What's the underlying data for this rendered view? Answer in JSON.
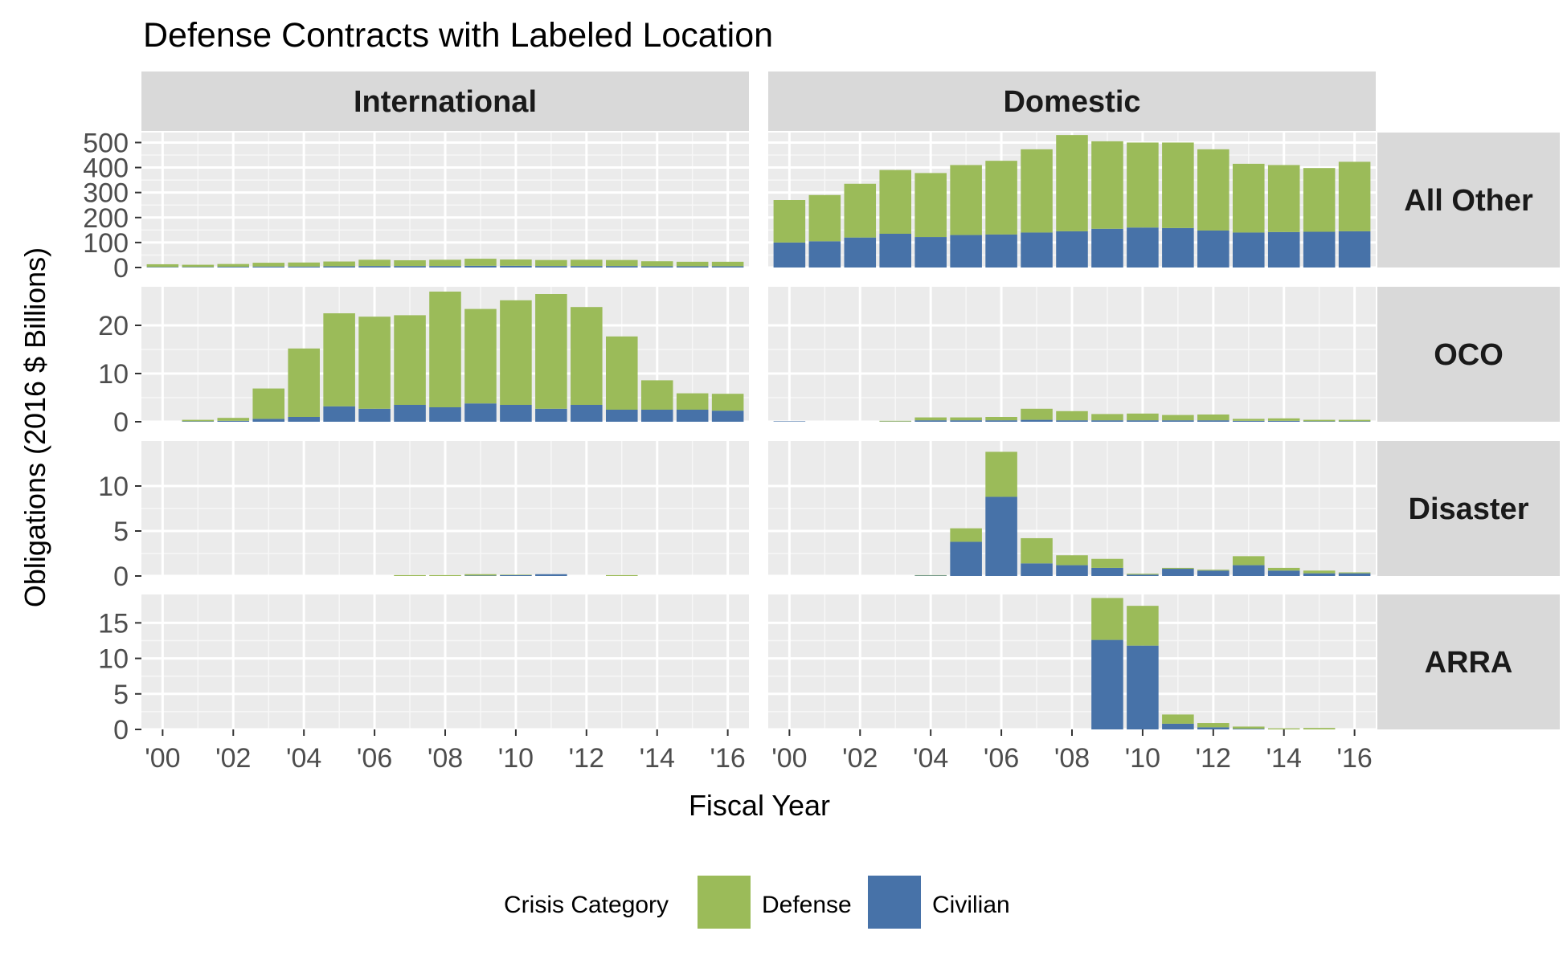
{
  "chart_data": {
    "type": "bar",
    "stacked": true,
    "facets": true,
    "title": "Defense Contracts with Labeled Location",
    "xlabel": "Fiscal Year",
    "ylabel": "Obligations (2016 $ Billions)",
    "x": [
      2000,
      2001,
      2002,
      2003,
      2004,
      2005,
      2006,
      2007,
      2008,
      2009,
      2010,
      2011,
      2012,
      2013,
      2014,
      2015,
      2016
    ],
    "x_tick_values": [
      2000,
      2002,
      2004,
      2006,
      2008,
      2010,
      2012,
      2014,
      2016
    ],
    "x_tick_labels": [
      "'00",
      "'02",
      "'04",
      "'06",
      "'08",
      "'10",
      "'12",
      "'14",
      "'16"
    ],
    "columns": [
      "International",
      "Domestic"
    ],
    "rows": [
      "All Other",
      "OCO",
      "Disaster",
      "ARRA"
    ],
    "row_scales": [
      {
        "ylim": [
          0,
          540
        ],
        "ticks": [
          0,
          100,
          200,
          300,
          400,
          500
        ]
      },
      {
        "ylim": [
          0,
          28
        ],
        "ticks": [
          0,
          10,
          20
        ]
      },
      {
        "ylim": [
          0,
          15
        ],
        "ticks": [
          0,
          5,
          10
        ]
      },
      {
        "ylim": [
          0,
          19
        ],
        "ticks": [
          0,
          5,
          10,
          15
        ]
      }
    ],
    "legend": {
      "title": "Crisis Category",
      "position": "bottom",
      "entries": [
        "Defense",
        "Civilian"
      ]
    },
    "colors": {
      "Defense": "#9bbb59",
      "Civilian": "#4772a8"
    },
    "panels": [
      {
        "column": "International",
        "row": "All Other",
        "series": [
          {
            "name": "Civilian",
            "values": [
              2,
              2,
              3,
              4,
              4,
              5,
              6,
              6,
              6,
              7,
              7,
              6,
              6,
              6,
              5,
              5,
              5
            ]
          },
          {
            "name": "Defense",
            "values": [
              11,
              9,
              11,
              15,
              16,
              19,
              25,
              23,
              25,
              28,
              25,
              24,
              25,
              24,
              20,
              18,
              18
            ]
          }
        ]
      },
      {
        "column": "Domestic",
        "row": "All Other",
        "series": [
          {
            "name": "Civilian",
            "values": [
              100,
              105,
              120,
              135,
              122,
              130,
              132,
              140,
              145,
              155,
              160,
              158,
              148,
              140,
              142,
              143,
              145
            ]
          },
          {
            "name": "Defense",
            "values": [
              170,
              185,
              215,
              255,
              256,
              280,
              295,
              333,
              385,
              350,
              340,
              342,
              325,
              275,
              268,
              255,
              278
            ]
          }
        ]
      },
      {
        "column": "International",
        "row": "OCO",
        "series": [
          {
            "name": "Civilian",
            "values": [
              0,
              0.1,
              0.2,
              0.6,
              1.0,
              3.2,
              2.7,
              3.5,
              3.0,
              3.8,
              3.5,
              2.7,
              3.5,
              2.5,
              2.5,
              2.5,
              2.3
            ]
          },
          {
            "name": "Defense",
            "values": [
              0,
              0.3,
              0.6,
              6.3,
              14.2,
              19.3,
              19.1,
              18.6,
              24.0,
              19.6,
              21.7,
              23.8,
              20.3,
              15.2,
              6.1,
              3.4,
              3.5
            ]
          }
        ]
      },
      {
        "column": "Domestic",
        "row": "OCO",
        "series": [
          {
            "name": "Civilian",
            "values": [
              0.1,
              0,
              0,
              0.05,
              0.3,
              0.3,
              0.3,
              0.4,
              0.3,
              0.3,
              0.3,
              0.3,
              0.3,
              0.2,
              0.2,
              0.1,
              0.1
            ]
          },
          {
            "name": "Defense",
            "values": [
              0,
              0,
              0,
              0.15,
              0.6,
              0.6,
              0.7,
              2.3,
              1.9,
              1.3,
              1.4,
              1.1,
              1.2,
              0.4,
              0.5,
              0.3,
              0.3
            ]
          }
        ]
      },
      {
        "column": "International",
        "row": "Disaster",
        "series": [
          {
            "name": "Civilian",
            "values": [
              0,
              0,
              0,
              0,
              0,
              0,
              0,
              0,
              0,
              0.05,
              0.1,
              0.2,
              0,
              0,
              0,
              0,
              0
            ]
          },
          {
            "name": "Defense",
            "values": [
              0,
              0,
              0,
              0,
              0,
              0,
              0,
              0.1,
              0.1,
              0.15,
              0.05,
              0,
              0,
              0.1,
              0,
              0,
              0
            ]
          }
        ]
      },
      {
        "column": "Domestic",
        "row": "Disaster",
        "series": [
          {
            "name": "Civilian",
            "values": [
              0,
              0,
              0,
              0,
              0.05,
              3.8,
              8.8,
              1.4,
              1.2,
              0.9,
              0.15,
              0.8,
              0.6,
              1.2,
              0.6,
              0.3,
              0.3
            ]
          },
          {
            "name": "Defense",
            "values": [
              0,
              0,
              0,
              0,
              0.05,
              1.5,
              5.0,
              2.8,
              1.1,
              1.0,
              0.1,
              0.1,
              0.1,
              1.0,
              0.3,
              0.3,
              0.1
            ]
          }
        ]
      },
      {
        "column": "International",
        "row": "ARRA",
        "series": [
          {
            "name": "Civilian",
            "values": [
              0,
              0,
              0,
              0,
              0,
              0,
              0,
              0,
              0,
              0,
              0,
              0,
              0,
              0,
              0,
              0,
              0
            ]
          },
          {
            "name": "Defense",
            "values": [
              0,
              0,
              0,
              0,
              0,
              0,
              0,
              0,
              0,
              0,
              0,
              0,
              0,
              0,
              0,
              0,
              0
            ]
          }
        ]
      },
      {
        "column": "Domestic",
        "row": "ARRA",
        "series": [
          {
            "name": "Civilian",
            "values": [
              0,
              0,
              0,
              0,
              0,
              0,
              0,
              0,
              0,
              12.6,
              11.8,
              0.8,
              0.3,
              0.1,
              0,
              0,
              0
            ]
          },
          {
            "name": "Defense",
            "values": [
              0,
              0,
              0,
              0,
              0,
              0,
              0,
              0,
              0,
              5.9,
              5.6,
              1.3,
              0.6,
              0.3,
              0.15,
              0.2,
              0
            ]
          }
        ]
      }
    ]
  }
}
